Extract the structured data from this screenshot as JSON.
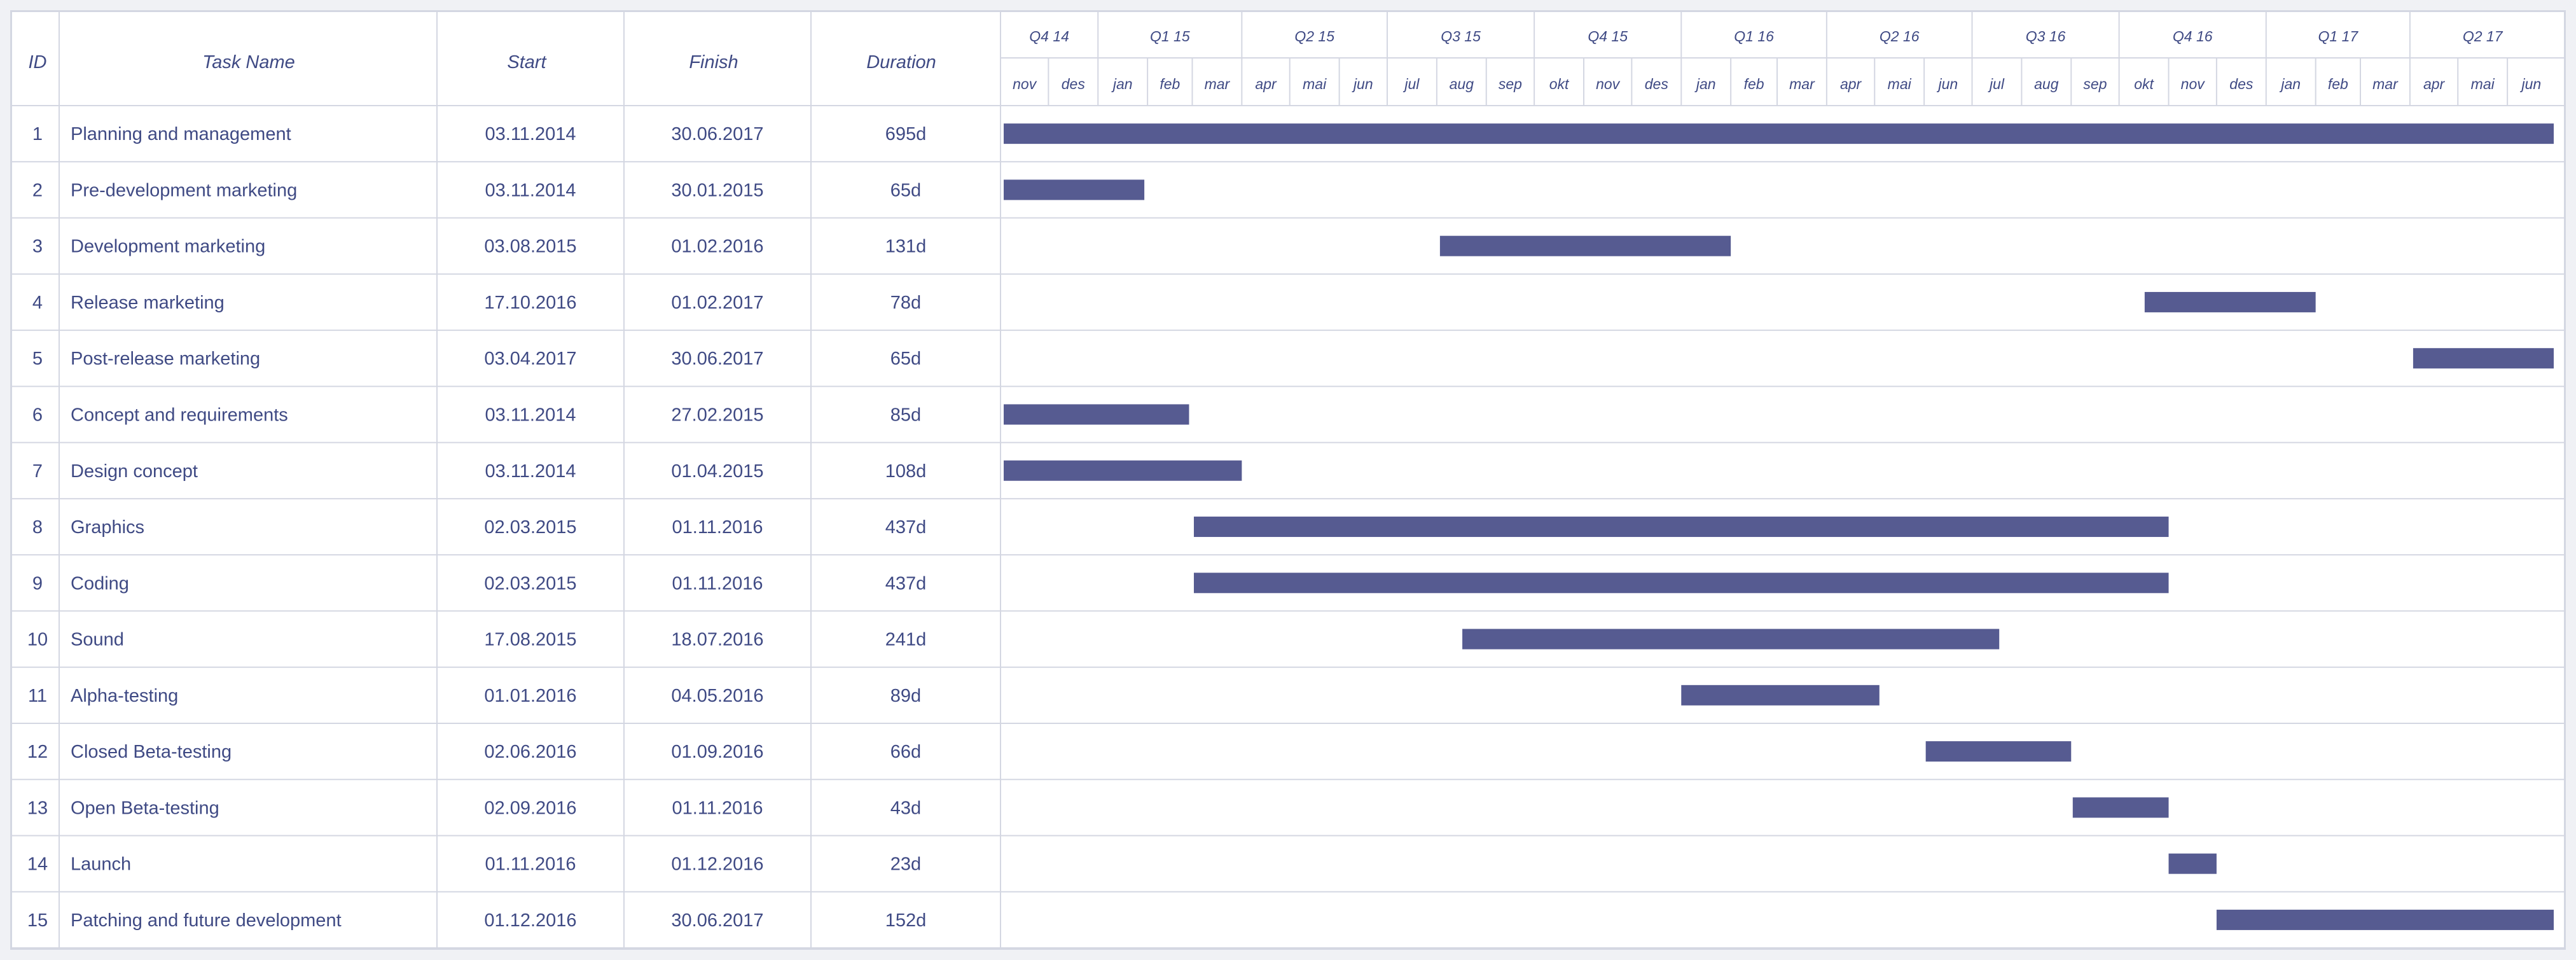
{
  "table": {
    "headers": {
      "id": "ID",
      "task": "Task Name",
      "start": "Start",
      "finish": "Finish",
      "duration": "Duration"
    },
    "rows": [
      {
        "id": "1",
        "task": "Planning and management",
        "start": "03.11.2014",
        "finish": "30.06.2017",
        "duration": "695d"
      },
      {
        "id": "2",
        "task": "Pre-development marketing",
        "start": "03.11.2014",
        "finish": "30.01.2015",
        "duration": "65d"
      },
      {
        "id": "3",
        "task": "Development marketing",
        "start": "03.08.2015",
        "finish": "01.02.2016",
        "duration": "131d"
      },
      {
        "id": "4",
        "task": "Release marketing",
        "start": "17.10.2016",
        "finish": "01.02.2017",
        "duration": "78d"
      },
      {
        "id": "5",
        "task": "Post-release marketing",
        "start": "03.04.2017",
        "finish": "30.06.2017",
        "duration": "65d"
      },
      {
        "id": "6",
        "task": "Concept and requirements",
        "start": "03.11.2014",
        "finish": "27.02.2015",
        "duration": "85d"
      },
      {
        "id": "7",
        "task": "Design concept",
        "start": "03.11.2014",
        "finish": "01.04.2015",
        "duration": "108d"
      },
      {
        "id": "8",
        "task": "Graphics",
        "start": "02.03.2015",
        "finish": "01.11.2016",
        "duration": "437d"
      },
      {
        "id": "9",
        "task": "Coding",
        "start": "02.03.2015",
        "finish": "01.11.2016",
        "duration": "437d"
      },
      {
        "id": "10",
        "task": "Sound",
        "start": "17.08.2015",
        "finish": "18.07.2016",
        "duration": "241d"
      },
      {
        "id": "11",
        "task": "Alpha-testing",
        "start": "01.01.2016",
        "finish": "04.05.2016",
        "duration": "89d"
      },
      {
        "id": "12",
        "task": "Closed Beta-testing",
        "start": "02.06.2016",
        "finish": "01.09.2016",
        "duration": "66d"
      },
      {
        "id": "13",
        "task": "Open Beta-testing",
        "start": "02.09.2016",
        "finish": "01.11.2016",
        "duration": "43d"
      },
      {
        "id": "14",
        "task": "Launch",
        "start": "01.11.2016",
        "finish": "01.12.2016",
        "duration": "23d"
      },
      {
        "id": "15",
        "task": "Patching and future development",
        "start": "01.12.2016",
        "finish": "30.06.2017",
        "duration": "152d"
      }
    ]
  },
  "timeline": {
    "quarters": [
      "Q4 14",
      "Q1 15",
      "Q2 15",
      "Q3 15",
      "Q4 15",
      "Q1 16",
      "Q2 16",
      "Q3 16",
      "Q4 16",
      "Q1 17",
      "Q2 17"
    ],
    "months": [
      "nov",
      "des",
      "jan",
      "feb",
      "mar",
      "apr",
      "mai",
      "jun",
      "jul",
      "aug",
      "sep",
      "okt",
      "nov",
      "des",
      "jan",
      "feb",
      "mar",
      "apr",
      "mai",
      "jun",
      "jul",
      "aug",
      "sep",
      "okt",
      "nov",
      "des",
      "jan",
      "feb",
      "mar",
      "apr",
      "mai",
      "jun"
    ]
  },
  "chart_data": {
    "type": "gantt",
    "x_range": [
      "2014-11-01",
      "2017-06-30"
    ],
    "tasks": [
      {
        "id": 1,
        "start": "2014-11-03",
        "finish": "2017-06-30"
      },
      {
        "id": 2,
        "start": "2014-11-03",
        "finish": "2015-01-30"
      },
      {
        "id": 3,
        "start": "2015-08-03",
        "finish": "2016-02-01"
      },
      {
        "id": 4,
        "start": "2016-10-17",
        "finish": "2017-02-01"
      },
      {
        "id": 5,
        "start": "2017-04-03",
        "finish": "2017-06-30"
      },
      {
        "id": 6,
        "start": "2014-11-03",
        "finish": "2015-02-27"
      },
      {
        "id": 7,
        "start": "2014-11-03",
        "finish": "2015-04-01"
      },
      {
        "id": 8,
        "start": "2015-03-02",
        "finish": "2016-11-01"
      },
      {
        "id": 9,
        "start": "2015-03-02",
        "finish": "2016-11-01"
      },
      {
        "id": 10,
        "start": "2015-08-17",
        "finish": "2016-07-18"
      },
      {
        "id": 11,
        "start": "2016-01-01",
        "finish": "2016-05-04"
      },
      {
        "id": 12,
        "start": "2016-06-02",
        "finish": "2016-09-01"
      },
      {
        "id": 13,
        "start": "2016-09-02",
        "finish": "2016-11-01"
      },
      {
        "id": 14,
        "start": "2016-11-01",
        "finish": "2016-12-01"
      },
      {
        "id": 15,
        "start": "2016-12-01",
        "finish": "2017-06-30"
      }
    ]
  },
  "colors": {
    "bar": "#565b91",
    "text": "#3f4a84",
    "grid": "#d4d7e2"
  }
}
